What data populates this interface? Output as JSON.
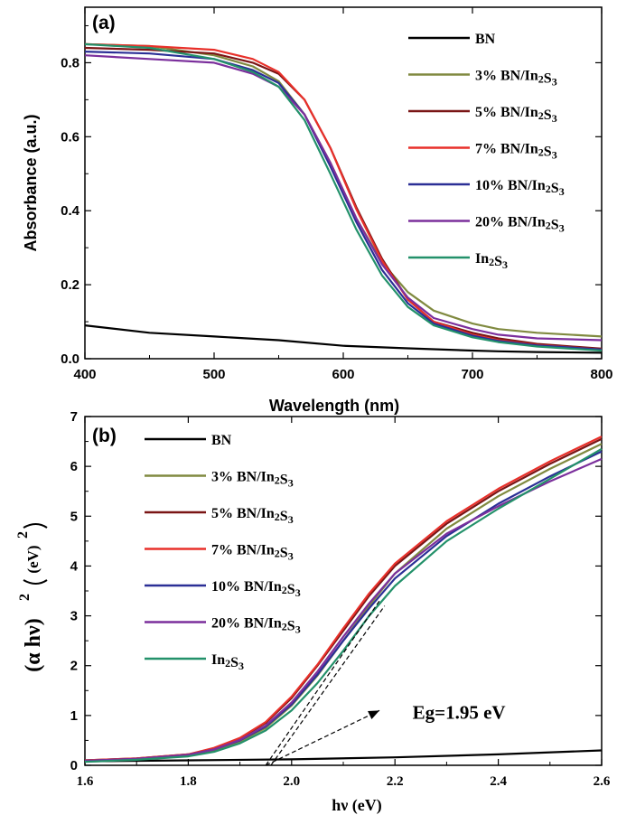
{
  "chart_data": [
    {
      "type": "line",
      "panel_label": "(a)",
      "xlabel": "Wavelength (nm)",
      "ylabel": "Absorbance (a.u.)",
      "xlim": [
        400,
        800
      ],
      "ylim": [
        0,
        0.95
      ],
      "xticks": [
        400,
        500,
        600,
        700,
        800
      ],
      "yticks": [
        0.0,
        0.2,
        0.4,
        0.6,
        0.8
      ],
      "ytick_labels": [
        "0.0",
        "0.2",
        "0.4",
        "0.6",
        "0.8"
      ],
      "grid": false,
      "legend_position": "right",
      "series": [
        {
          "name": "BN",
          "color": "#000000",
          "x": [
            400,
            450,
            500,
            550,
            600,
            650,
            700,
            720,
            750,
            800
          ],
          "y": [
            0.09,
            0.07,
            0.06,
            0.05,
            0.035,
            0.028,
            0.022,
            0.02,
            0.018,
            0.016
          ]
        },
        {
          "name": "3% BN/In2S3",
          "color": "#808a40",
          "x": [
            400,
            450,
            500,
            530,
            550,
            570,
            590,
            610,
            630,
            650,
            670,
            700,
            720,
            750,
            800
          ],
          "y": [
            0.85,
            0.845,
            0.82,
            0.79,
            0.75,
            0.66,
            0.53,
            0.38,
            0.26,
            0.18,
            0.13,
            0.095,
            0.08,
            0.07,
            0.06
          ]
        },
        {
          "name": "5% BN/In2S3",
          "color": "#7a1515",
          "x": [
            400,
            450,
            500,
            530,
            550,
            570,
            590,
            610,
            630,
            650,
            670,
            700,
            720,
            750,
            800
          ],
          "y": [
            0.84,
            0.835,
            0.825,
            0.8,
            0.77,
            0.7,
            0.57,
            0.41,
            0.27,
            0.16,
            0.1,
            0.07,
            0.055,
            0.04,
            0.027
          ]
        },
        {
          "name": "7% BN/In2S3",
          "color": "#e8302a",
          "x": [
            400,
            450,
            500,
            530,
            550,
            570,
            590,
            610,
            630,
            650,
            670,
            700,
            720,
            750,
            800
          ],
          "y": [
            0.85,
            0.845,
            0.835,
            0.81,
            0.775,
            0.7,
            0.57,
            0.405,
            0.265,
            0.16,
            0.1,
            0.065,
            0.05,
            0.037,
            0.025
          ]
        },
        {
          "name": "10% BN/In2S3",
          "color": "#2b2f96",
          "x": [
            400,
            450,
            500,
            530,
            550,
            570,
            590,
            610,
            630,
            650,
            670,
            700,
            720,
            750,
            800
          ],
          "y": [
            0.83,
            0.825,
            0.81,
            0.78,
            0.745,
            0.66,
            0.52,
            0.37,
            0.24,
            0.15,
            0.095,
            0.062,
            0.048,
            0.036,
            0.025
          ]
        },
        {
          "name": "20% BN/In2S3",
          "color": "#7b2f9c",
          "x": [
            400,
            450,
            500,
            530,
            550,
            570,
            590,
            610,
            630,
            650,
            670,
            700,
            720,
            750,
            800
          ],
          "y": [
            0.82,
            0.81,
            0.8,
            0.77,
            0.735,
            0.66,
            0.53,
            0.38,
            0.255,
            0.165,
            0.11,
            0.08,
            0.065,
            0.055,
            0.05
          ]
        },
        {
          "name": "In2S3",
          "color": "#23916a",
          "x": [
            400,
            450,
            500,
            530,
            550,
            570,
            590,
            610,
            630,
            650,
            670,
            700,
            720,
            750,
            800
          ],
          "y": [
            0.85,
            0.84,
            0.81,
            0.775,
            0.735,
            0.645,
            0.5,
            0.35,
            0.225,
            0.14,
            0.09,
            0.058,
            0.045,
            0.033,
            0.022
          ]
        }
      ]
    },
    {
      "type": "line",
      "panel_label": "(b)",
      "xlabel": "hν (eV)",
      "ylabel_main": "(α hν)",
      "ylabel_exp": "2",
      "ylabel_unit": "(eV)",
      "xlim": [
        1.6,
        2.6
      ],
      "ylim": [
        0,
        7
      ],
      "xticks": [
        1.6,
        1.8,
        2.0,
        2.2,
        2.4,
        2.6
      ],
      "xtick_labels": [
        "1.6",
        "1.8",
        "2.0",
        "2.2",
        "2.4",
        "2.6"
      ],
      "yticks": [
        0,
        1,
        2,
        3,
        4,
        5,
        6,
        7
      ],
      "grid": false,
      "legend_position": "left",
      "annotation": {
        "text": "Eg=1.95 eV",
        "x": 2.22,
        "y": 1.1,
        "arrow_from": [
          1.95,
          0.0
        ],
        "arrow_to": [
          2.17,
          1.1
        ]
      },
      "tangent_lines": [
        {
          "from": [
            1.95,
            0.0
          ],
          "to": [
            2.17,
            3.3
          ]
        },
        {
          "from": [
            1.96,
            0.0
          ],
          "to": [
            2.18,
            3.2
          ]
        }
      ],
      "series": [
        {
          "name": "BN",
          "color": "#000000",
          "x": [
            1.6,
            1.8,
            2.0,
            2.2,
            2.4,
            2.6
          ],
          "y": [
            0.08,
            0.1,
            0.12,
            0.16,
            0.22,
            0.3
          ]
        },
        {
          "name": "3% BN/In2S3",
          "color": "#808a40",
          "x": [
            1.6,
            1.7,
            1.8,
            1.85,
            1.9,
            1.95,
            2.0,
            2.05,
            2.1,
            2.15,
            2.2,
            2.3,
            2.4,
            2.5,
            2.6
          ],
          "y": [
            0.08,
            0.12,
            0.2,
            0.3,
            0.48,
            0.75,
            1.2,
            1.8,
            2.5,
            3.2,
            3.85,
            4.75,
            5.4,
            5.95,
            6.45
          ]
        },
        {
          "name": "5% BN/In2S3",
          "color": "#7a1515",
          "x": [
            1.6,
            1.7,
            1.8,
            1.85,
            1.9,
            1.95,
            2.0,
            2.05,
            2.1,
            2.15,
            2.2,
            2.3,
            2.4,
            2.5,
            2.6
          ],
          "y": [
            0.1,
            0.14,
            0.22,
            0.34,
            0.54,
            0.85,
            1.35,
            2.0,
            2.7,
            3.4,
            4.0,
            4.85,
            5.5,
            6.05,
            6.55
          ]
        },
        {
          "name": "7% BN/In2S3",
          "color": "#e8302a",
          "x": [
            1.6,
            1.7,
            1.8,
            1.85,
            1.9,
            1.95,
            2.0,
            2.05,
            2.1,
            2.15,
            2.2,
            2.3,
            2.4,
            2.5,
            2.6
          ],
          "y": [
            0.1,
            0.14,
            0.22,
            0.35,
            0.55,
            0.87,
            1.38,
            2.02,
            2.75,
            3.45,
            4.05,
            4.9,
            5.55,
            6.1,
            6.6
          ]
        },
        {
          "name": "10% BN/In2S3",
          "color": "#2b2f96",
          "x": [
            1.6,
            1.7,
            1.8,
            1.85,
            1.9,
            1.95,
            2.0,
            2.05,
            2.1,
            2.15,
            2.2,
            2.3,
            2.4,
            2.5,
            2.6
          ],
          "y": [
            0.09,
            0.13,
            0.21,
            0.32,
            0.5,
            0.78,
            1.22,
            1.82,
            2.5,
            3.15,
            3.75,
            4.6,
            5.25,
            5.8,
            6.3
          ]
        },
        {
          "name": "20% BN/In2S3",
          "color": "#7b2f9c",
          "x": [
            1.6,
            1.7,
            1.8,
            1.85,
            1.9,
            1.95,
            2.0,
            2.05,
            2.1,
            2.15,
            2.2,
            2.3,
            2.4,
            2.5,
            2.6
          ],
          "y": [
            0.09,
            0.13,
            0.21,
            0.32,
            0.51,
            0.8,
            1.26,
            1.88,
            2.58,
            3.25,
            3.85,
            4.65,
            5.2,
            5.7,
            6.15
          ]
        },
        {
          "name": "In2S3",
          "color": "#23916a",
          "x": [
            1.6,
            1.7,
            1.8,
            1.85,
            1.9,
            1.95,
            2.0,
            2.05,
            2.1,
            2.15,
            2.2,
            2.3,
            2.4,
            2.5,
            2.6
          ],
          "y": [
            0.07,
            0.11,
            0.18,
            0.27,
            0.44,
            0.7,
            1.1,
            1.65,
            2.3,
            3.0,
            3.6,
            4.5,
            5.15,
            5.75,
            6.35
          ]
        }
      ]
    }
  ]
}
